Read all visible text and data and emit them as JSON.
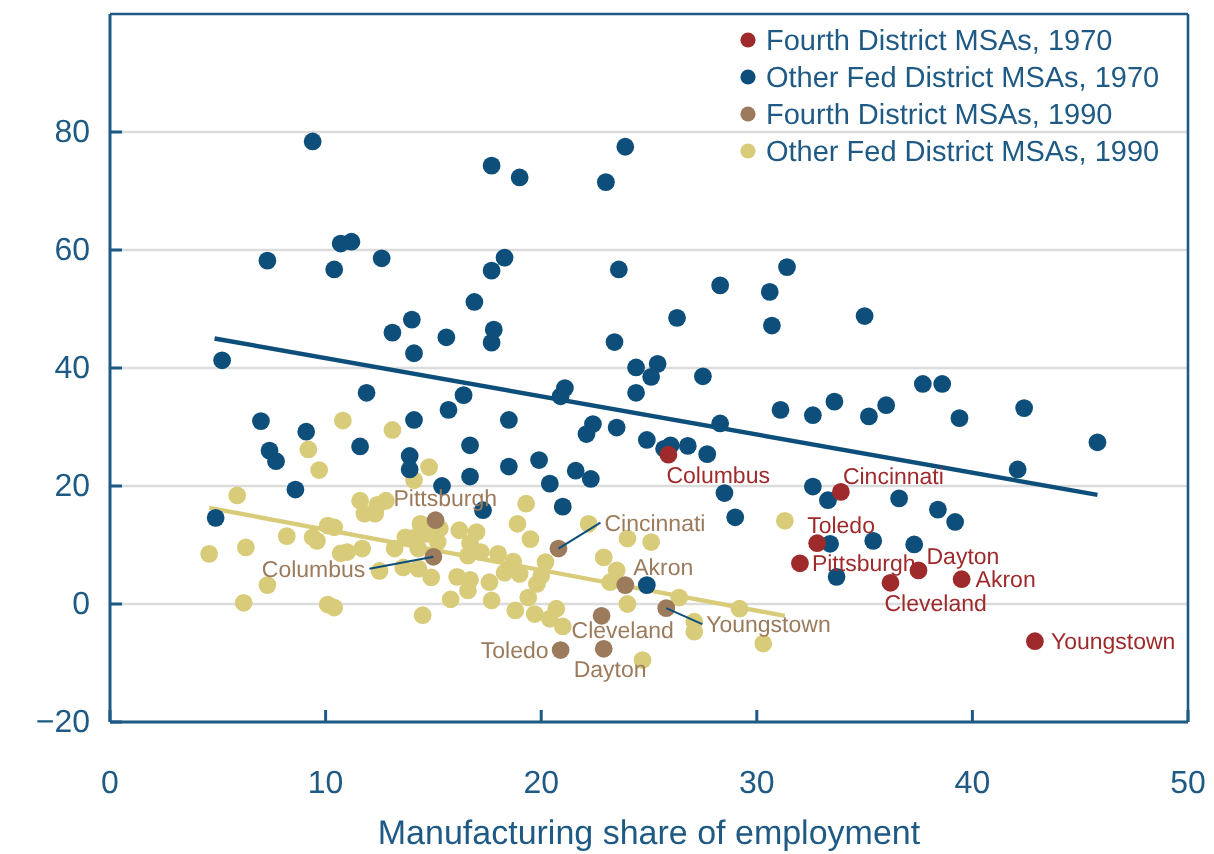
{
  "chart_data": {
    "type": "scatter",
    "xlabel": "Manufacturing share of employment",
    "xlim": [
      0,
      50
    ],
    "xticks": [
      0,
      10,
      20,
      30,
      40,
      50
    ],
    "ylim": [
      -20,
      100
    ],
    "yticks": [
      -20,
      0,
      20,
      40,
      60,
      80
    ],
    "grid": "y",
    "legend": "top right",
    "marker": "circle",
    "series": [
      {
        "name": "Fourth District MSAs, 1970",
        "color": "#9e2a2b",
        "x": [
          25.9,
          33.9,
          32.8,
          32.0,
          37.5,
          36.2,
          39.5,
          42.9
        ],
        "values": [
          25.3,
          19.0,
          10.3,
          6.9,
          5.7,
          3.6,
          4.2,
          -6.3
        ]
      },
      {
        "name": "Other Fed District MSAs, 1970",
        "color": "#0d4f7a",
        "x": [
          9.4,
          7.3,
          10.4,
          10.7,
          11.2,
          12.6,
          14.0,
          13.1,
          14.1,
          15.6,
          16.9,
          17.7,
          19.0,
          17.7,
          18.3,
          17.8,
          17.7,
          23.0,
          23.9,
          23.6,
          23.4,
          24.4,
          5.2,
          11.9,
          16.4,
          21.1,
          20.9,
          24.4,
          28.3,
          30.6,
          31.4,
          30.7,
          26.3,
          35.0,
          25.4,
          25.1,
          27.5,
          37.7,
          38.6,
          31.1,
          32.6,
          33.6,
          35.2,
          36.0,
          39.4,
          42.4,
          45.8,
          42.1,
          28.3,
          23.5,
          22.4,
          22.1,
          24.9,
          25.7,
          26.0,
          26.8,
          27.7,
          21.6,
          22.3,
          28.5,
          29.0,
          32.6,
          33.3,
          36.6,
          38.4,
          39.2,
          33.4,
          35.4,
          37.3,
          33.7,
          24.9,
          21.0,
          15.7,
          14.1,
          18.5,
          7.0,
          9.1,
          11.6,
          16.7,
          7.4,
          7.7,
          13.9,
          13.9,
          19.9,
          18.5,
          20.4,
          16.7,
          15.4,
          8.6,
          17.3,
          4.9
        ],
        "values": [
          78.4,
          58.2,
          56.7,
          61.1,
          61.4,
          58.6,
          48.2,
          46.0,
          42.5,
          45.2,
          51.2,
          74.3,
          72.3,
          56.5,
          58.7,
          46.5,
          44.3,
          71.5,
          77.5,
          56.7,
          44.4,
          40.1,
          41.3,
          35.8,
          35.4,
          36.6,
          35.2,
          35.8,
          54.0,
          52.9,
          57.1,
          47.2,
          48.5,
          48.8,
          40.7,
          38.5,
          38.6,
          37.3,
          37.3,
          32.9,
          32.0,
          34.3,
          31.8,
          33.7,
          31.5,
          33.2,
          27.4,
          22.8,
          30.6,
          29.9,
          30.5,
          28.8,
          27.8,
          26.3,
          26.9,
          26.8,
          25.4,
          22.6,
          21.2,
          18.8,
          14.7,
          19.9,
          17.6,
          17.9,
          16.0,
          13.9,
          10.2,
          10.7,
          10.1,
          4.6,
          3.2,
          16.5,
          32.9,
          31.2,
          31.2,
          31.0,
          29.2,
          26.7,
          26.9,
          26.0,
          24.2,
          25.1,
          22.8,
          24.4,
          23.3,
          20.4,
          21.6,
          20.0,
          19.4,
          15.9,
          14.6
        ]
      },
      {
        "name": "Fourth District MSAs, 1990",
        "color": "#9b7b5c",
        "x": [
          15.1,
          15.0,
          20.8,
          23.9,
          22.8,
          20.9,
          22.9,
          25.8
        ],
        "values": [
          14.2,
          8.0,
          9.4,
          3.2,
          -2.0,
          -7.8,
          -7.6,
          -0.7
        ]
      },
      {
        "name": "Other Fed District MSAs, 1990",
        "color": "#d8cc7a",
        "x": [
          10.8,
          13.1,
          9.2,
          9.7,
          14.8,
          14.1,
          5.9,
          11.6,
          12.4,
          12.8,
          12.3,
          11.8,
          19.3,
          18.9,
          22.2,
          10.1,
          10.4,
          8.2,
          9.4,
          9.6,
          6.3,
          4.6,
          7.3,
          6.2,
          10.1,
          10.4,
          11.7,
          10.7,
          11.0,
          12.5,
          13.2,
          13.7,
          14.2,
          14.4,
          14.7,
          15.3,
          15.2,
          14.3,
          13.6,
          14.3,
          14.9,
          14.5,
          16.2,
          17.0,
          16.7,
          17.2,
          16.6,
          16.1,
          16.7,
          16.6,
          17.6,
          17.7,
          15.8,
          18.0,
          18.3,
          18.7,
          19.0,
          19.5,
          19.4,
          18.8,
          19.7,
          19.8,
          20.2,
          20.0,
          20.7,
          20.4,
          21.0,
          22.9,
          24.0,
          23.5,
          23.2,
          24.0,
          24.7,
          25.1,
          26.4,
          27.1,
          27.1,
          29.2,
          30.3,
          31.3
        ],
        "values": [
          31.1,
          29.5,
          26.2,
          22.7,
          23.2,
          21.0,
          18.4,
          17.5,
          16.8,
          17.5,
          15.3,
          15.3,
          17.0,
          13.6,
          13.6,
          13.3,
          13.0,
          11.5,
          11.3,
          10.7,
          9.6,
          8.5,
          3.2,
          0.2,
          -0.1,
          -0.6,
          9.4,
          8.6,
          8.8,
          5.6,
          9.4,
          11.3,
          11.4,
          13.6,
          11.9,
          12.8,
          10.5,
          9.4,
          6.2,
          6.0,
          4.5,
          -1.9,
          12.5,
          12.2,
          10.3,
          8.8,
          8.2,
          4.6,
          4.1,
          2.3,
          3.7,
          0.6,
          0.8,
          8.5,
          5.3,
          7.2,
          5.1,
          11.0,
          1.1,
          -1.1,
          -1.7,
          3.4,
          7.1,
          4.8,
          -0.8,
          -2.5,
          -3.8,
          7.9,
          11.1,
          5.7,
          3.7,
          0.0,
          -9.5,
          10.5,
          1.1,
          -3.0,
          -4.7,
          -0.8,
          -6.7,
          14.1
        ]
      },
      {
        "type": "line",
        "marker": "none",
        "color": "#0d4f7a",
        "x": [
          4.85,
          45.8
        ],
        "values": [
          45.0,
          18.5
        ]
      },
      {
        "type": "line",
        "marker": "none",
        "color": "#d8cc7a",
        "x": [
          4.6,
          31.3
        ],
        "values": [
          16.3,
          -2.0
        ]
      }
    ],
    "annotations": [
      {
        "text": "Columbus",
        "x": 25.9,
        "y": 25.3
      },
      {
        "text": "Cincinnati",
        "x": 33.9,
        "y": 19.0
      },
      {
        "text": "Toledo",
        "x": 32.8,
        "y": 10.3
      },
      {
        "text": "Pittsburgh",
        "x": 32.0,
        "y": 6.9
      },
      {
        "text": "Dayton",
        "x": 37.5,
        "y": 5.7
      },
      {
        "text": "Cleveland",
        "x": 36.2,
        "y": 3.6
      },
      {
        "text": "Akron",
        "x": 39.5,
        "y": 4.2
      },
      {
        "text": "Youngstown",
        "x": 42.9,
        "y": -6.3
      },
      {
        "text": "Pittsburgh",
        "x": 15.1,
        "y": 14.2
      },
      {
        "text": "Columbus",
        "x": 15.0,
        "y": 8.0
      },
      {
        "text": "Cincinnati",
        "x": 20.8,
        "y": 9.4
      },
      {
        "text": "Akron",
        "x": 23.9,
        "y": 3.2
      },
      {
        "text": "Cleveland",
        "x": 22.8,
        "y": -2.0
      },
      {
        "text": "Toledo",
        "x": 20.9,
        "y": -7.8
      },
      {
        "text": "Dayton",
        "x": 22.9,
        "y": -7.6
      },
      {
        "text": "Youngstown",
        "x": 25.8,
        "y": -0.7
      }
    ]
  }
}
